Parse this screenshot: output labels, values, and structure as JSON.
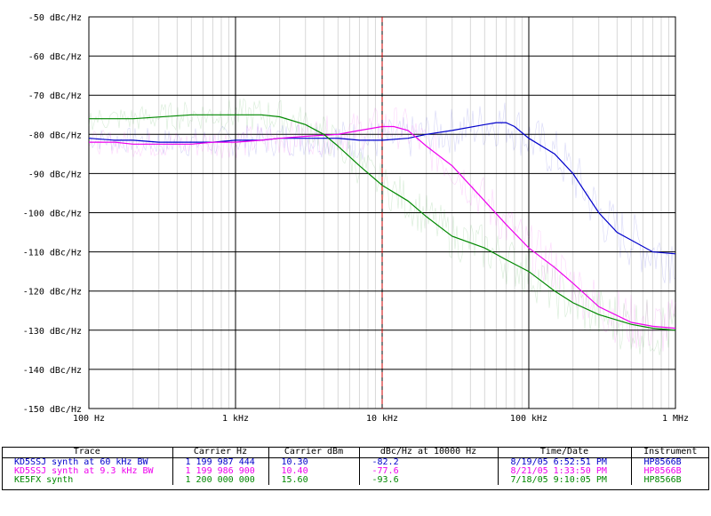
{
  "chart_data": {
    "type": "line",
    "xscale": "log",
    "xlim": [
      100,
      1000000
    ],
    "ylim": [
      -150,
      -50
    ],
    "grid": true,
    "y_ticks": [
      "-50 dBc/Hz",
      "-60 dBc/Hz",
      "-70 dBc/Hz",
      "-80 dBc/Hz",
      "-90 dBc/Hz",
      "-100 dBc/Hz",
      "-110 dBc/Hz",
      "-120 dBc/Hz",
      "-130 dBc/Hz",
      "-140 dBc/Hz",
      "-150 dBc/Hz"
    ],
    "x_ticks": [
      {
        "value": 100,
        "label": "100 Hz"
      },
      {
        "value": 1000,
        "label": "1 kHz"
      },
      {
        "value": 10000,
        "label": "10 kHz"
      },
      {
        "value": 100000,
        "label": "100 kHz"
      },
      {
        "value": 1000000,
        "label": "1 MHz"
      }
    ],
    "marker_x": 10000,
    "series": [
      {
        "name": "KD5SSJ synth at 60 kHz BW",
        "color": "#0000cc",
        "x": [
          100,
          150,
          200,
          300,
          500,
          700,
          1000,
          1500,
          2000,
          3000,
          5000,
          7000,
          10000,
          15000,
          20000,
          30000,
          50000,
          60000,
          70000,
          80000,
          100000,
          150000,
          200000,
          300000,
          400000,
          500000,
          700000,
          1000000
        ],
        "y": [
          -81,
          -81.5,
          -81.5,
          -82,
          -82,
          -82,
          -81.5,
          -81.5,
          -81,
          -81,
          -81,
          -81.5,
          -81.5,
          -81,
          -80,
          -79,
          -77.5,
          -77,
          -77,
          -78,
          -81,
          -85,
          -90,
          -100,
          -105,
          -107,
          -110,
          -110.5
        ]
      },
      {
        "name": "KD5SSJ synth at 9.3 kHz BW",
        "color": "#ee00ee",
        "x": [
          100,
          150,
          200,
          300,
          500,
          700,
          1000,
          1500,
          2000,
          3000,
          5000,
          7000,
          10000,
          12000,
          15000,
          20000,
          30000,
          50000,
          70000,
          100000,
          150000,
          200000,
          300000,
          500000,
          700000,
          1000000
        ],
        "y": [
          -82,
          -82,
          -82.5,
          -82.5,
          -82.5,
          -82,
          -82,
          -81.5,
          -81,
          -80.5,
          -80,
          -79,
          -78,
          -78,
          -79,
          -83,
          -88,
          -97,
          -103,
          -109,
          -114,
          -118,
          -124,
          -128,
          -129,
          -129.5
        ]
      },
      {
        "name": "KE5FX synth",
        "color": "#008800",
        "x": [
          100,
          200,
          500,
          700,
          1000,
          1500,
          2000,
          3000,
          4000,
          5000,
          7000,
          10000,
          15000,
          20000,
          30000,
          50000,
          70000,
          100000,
          150000,
          200000,
          300000,
          500000,
          700000,
          1000000
        ],
        "y": [
          -76,
          -76,
          -75,
          -75,
          -75,
          -75,
          -75.5,
          -77.5,
          -80,
          -83,
          -88,
          -93,
          -97,
          -101,
          -106,
          -109,
          -112,
          -115,
          -120,
          -123,
          -126,
          -128.5,
          -129.5,
          -130
        ]
      }
    ]
  },
  "table": {
    "headers": [
      "Trace",
      "Carrier Hz",
      "Carrier dBm",
      "dBc/Hz at 10000 Hz",
      "Time/Date",
      "Instrument"
    ],
    "rows": [
      {
        "color": "#0000cc",
        "cells": [
          "KD5SSJ synth at 60 kHz BW",
          "1 199 987 444",
          "10.30",
          "-82.2",
          "8/19/05 6:52:51 PM",
          "HP8566B"
        ]
      },
      {
        "color": "#ee00ee",
        "cells": [
          "KD5SSJ synth at 9.3 kHz BW",
          "1 199 986 900",
          "10.40",
          "-77.6",
          "8/21/05 1:33:50 PM",
          "HP8566B"
        ]
      },
      {
        "color": "#008800",
        "cells": [
          "KE5FX synth",
          "1 200 000 000",
          "15.60",
          "-93.6",
          "7/18/05 9:10:05 PM",
          "HP8566B"
        ]
      }
    ]
  }
}
